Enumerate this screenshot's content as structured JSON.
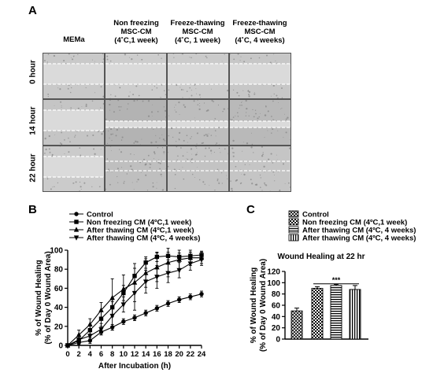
{
  "panel_a": {
    "letter": "A",
    "column_headers": [
      {
        "lines": [
          "MEMa"
        ]
      },
      {
        "lines": [
          "Non freezing",
          "MSC-CM",
          "(4˚C,1 week)"
        ]
      },
      {
        "lines": [
          "Freeze-thawing",
          "MSC-CM",
          "(4˚C, 1 week)"
        ]
      },
      {
        "lines": [
          "Freeze-thawing",
          "MSC-CM",
          "(4˚C, 4 weeks)"
        ]
      }
    ],
    "row_labels": [
      "0 hour",
      "14 hour",
      "22 hour"
    ],
    "images": [
      [
        {
          "tone": "#c9c9c9",
          "gap": "wide"
        },
        {
          "tone": "#cdcdcd",
          "gap": "wide"
        },
        {
          "tone": "#cbcbcb",
          "gap": "wide"
        },
        {
          "tone": "#c7c7c7",
          "gap": "wide"
        }
      ],
      [
        {
          "tone": "#c5c5c5",
          "gap": "wide"
        },
        {
          "tone": "#b3b3b3",
          "gap": "narrow"
        },
        {
          "tone": "#bdbdbd",
          "gap": "narrow"
        },
        {
          "tone": "#b9b9b9",
          "gap": "narrow"
        }
      ],
      [
        {
          "tone": "#cbcbcb",
          "gap": "wide"
        },
        {
          "tone": "#bfbfbf",
          "gap": "none"
        },
        {
          "tone": "#c3c3c3",
          "gap": "none"
        },
        {
          "tone": "#c5c5c5",
          "gap": "none"
        }
      ]
    ]
  },
  "panel_b": {
    "letter": "B"
  },
  "panel_c": {
    "letter": "C"
  },
  "chart_data": [
    {
      "type": "line",
      "xlabel": "After Incubation (h)",
      "ylabel": "% of Wound Healing\n(% of Day 0 Wound Area)",
      "xlim": [
        0,
        24
      ],
      "ylim": [
        0,
        100
      ],
      "xticks": [
        0,
        2,
        4,
        6,
        8,
        10,
        12,
        14,
        16,
        18,
        20,
        22,
        24
      ],
      "yticks": [
        0,
        20,
        40,
        60,
        80,
        100
      ],
      "legend_position": "top-left",
      "x": [
        0,
        2,
        4,
        6,
        8,
        10,
        12,
        14,
        16,
        18,
        20,
        22,
        24
      ],
      "series": [
        {
          "name": "Control",
          "marker": "circle",
          "values": [
            0,
            3,
            5,
            14,
            19,
            25,
            29,
            34,
            39,
            44,
            48,
            51,
            54
          ],
          "errors": [
            0,
            3,
            3,
            3,
            3,
            3,
            3,
            3,
            3,
            3,
            3,
            3,
            3
          ]
        },
        {
          "name": "Non freezing CM (4ºC,1 week)",
          "marker": "square",
          "values": [
            0,
            5,
            16,
            28,
            40,
            55,
            73,
            87,
            93,
            94,
            93,
            94,
            95
          ],
          "errors": [
            0,
            4,
            6,
            8,
            8,
            8,
            8,
            6,
            5,
            4,
            4,
            4,
            4
          ]
        },
        {
          "name": "After thawing CM (4ºC,1 week)",
          "marker": "triangle-up",
          "values": [
            0,
            11,
            22,
            37,
            50,
            59,
            66,
            76,
            82,
            87,
            90,
            92,
            92
          ],
          "errors": [
            0,
            5,
            6,
            8,
            20,
            15,
            20,
            15,
            15,
            15,
            10,
            8,
            6
          ]
        },
        {
          "name": "After thawing CM (4ºC, 4 weeks)",
          "marker": "triangle-down",
          "values": [
            0,
            6,
            10,
            17,
            31,
            43,
            55,
            67,
            72,
            76,
            79,
            86,
            90
          ],
          "errors": [
            0,
            5,
            5,
            6,
            15,
            8,
            18,
            12,
            12,
            10,
            8,
            7,
            6
          ]
        }
      ]
    },
    {
      "type": "bar",
      "title": "Wound Healing at 22 hr",
      "ylabel": "% of Wound Healing\n(% of Day 0 Wound Area)",
      "ylim": [
        0,
        120
      ],
      "yticks": [
        0,
        20,
        40,
        60,
        80,
        100,
        120
      ],
      "legend_position": "top",
      "significance": "***",
      "series": [
        {
          "name": "Control",
          "value": 50,
          "error": 5,
          "pattern": "crosshatch"
        },
        {
          "name": "Non freezing CM (4ºC,1 week)",
          "value": 90,
          "error": 3,
          "pattern": "checker"
        },
        {
          "name": "After thawing CM (4ºC, 4 weeks)",
          "value": 95,
          "error": 2,
          "pattern": "hlines"
        },
        {
          "name": "After thawing CM (4ºC, 4 weeks)",
          "value": 88,
          "error": 7,
          "pattern": "vlines"
        }
      ]
    }
  ]
}
